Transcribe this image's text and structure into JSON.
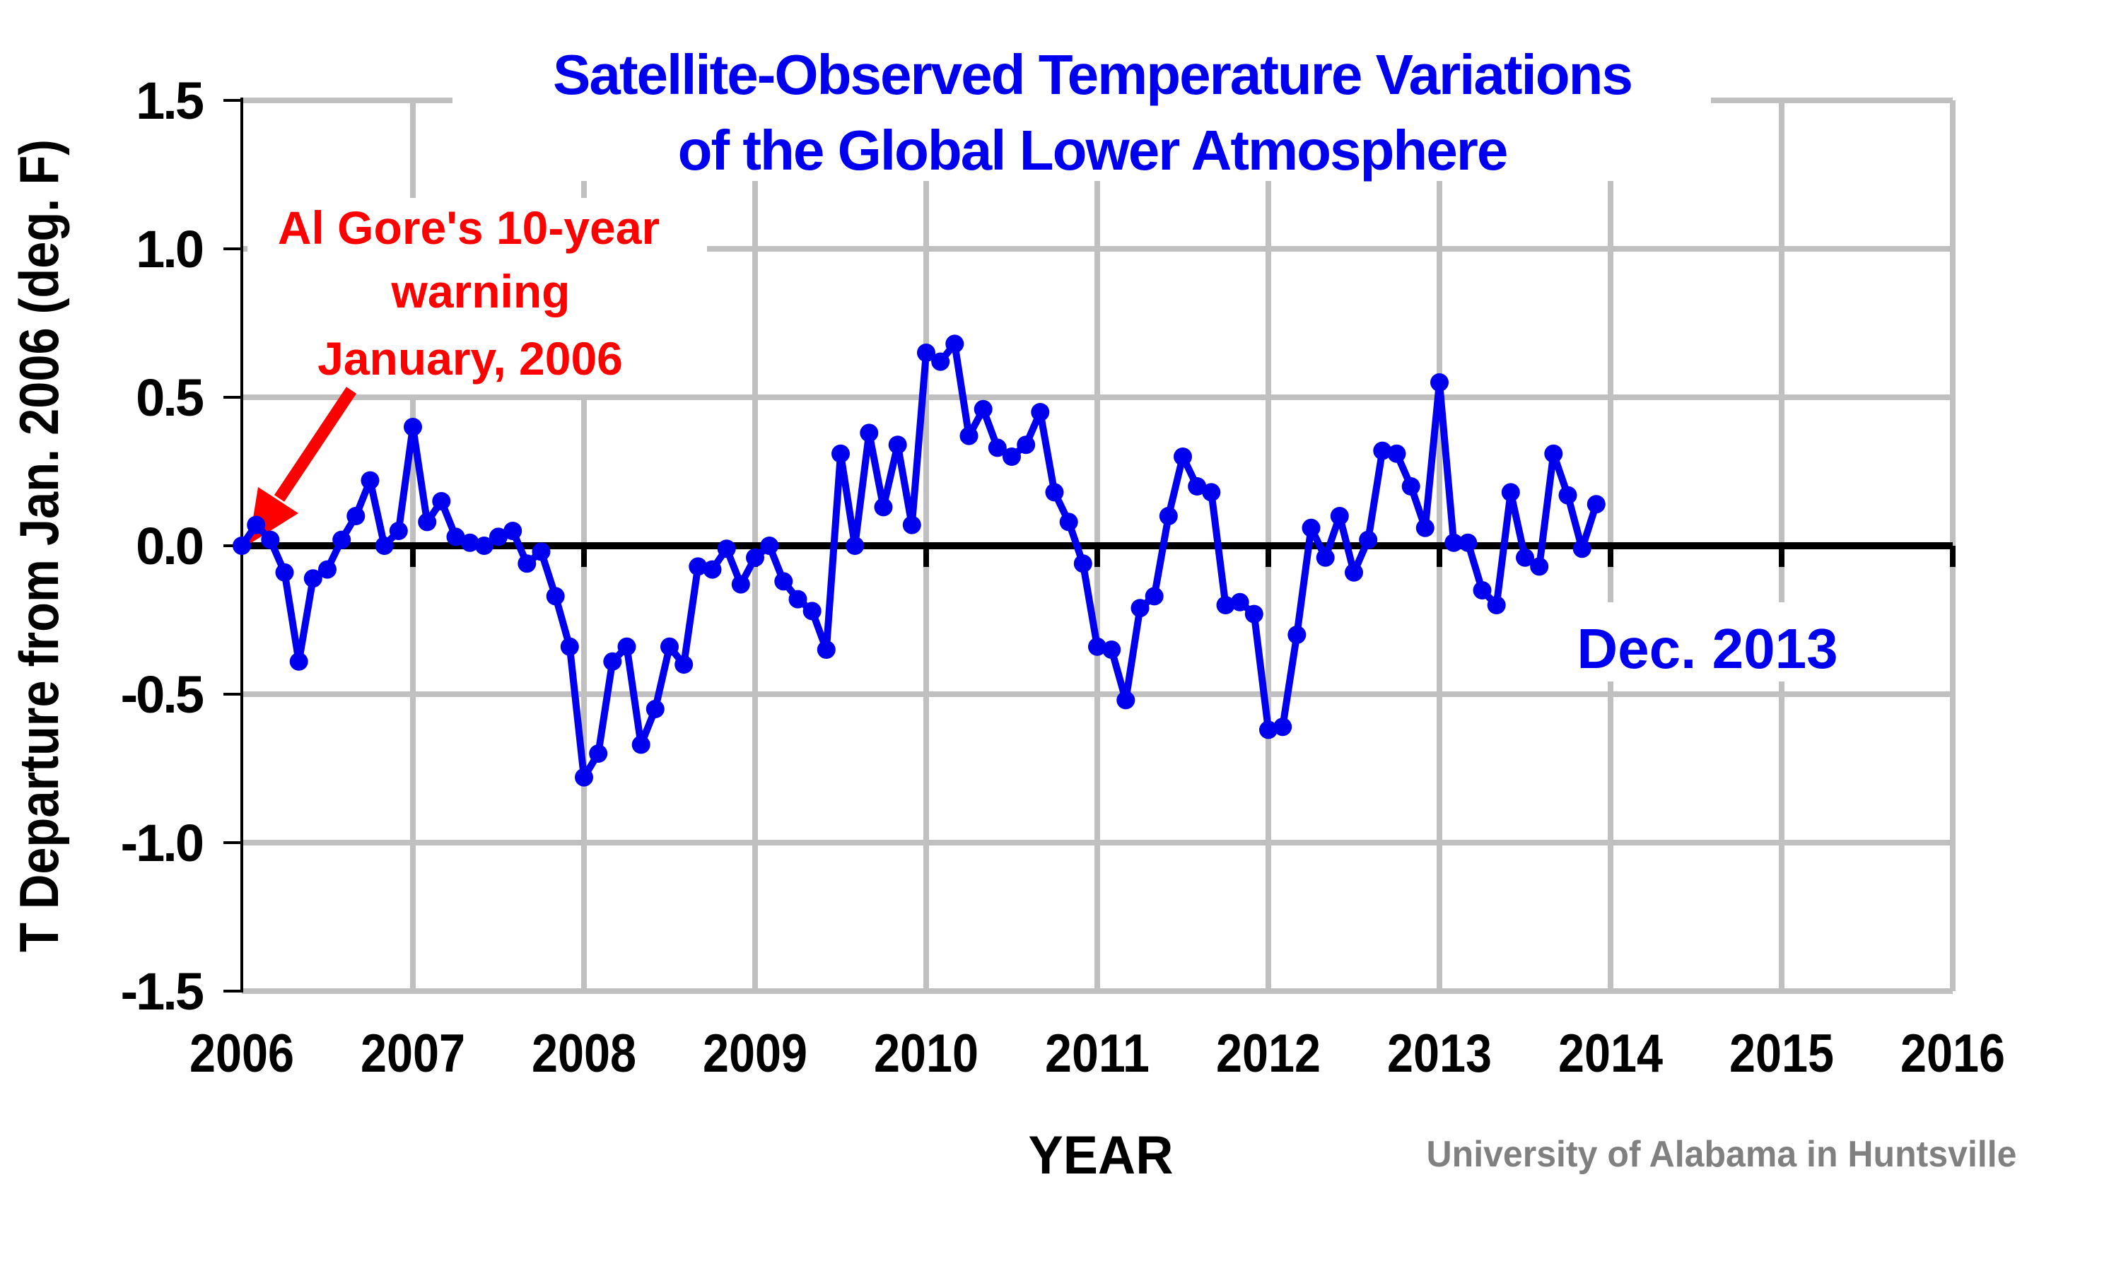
{
  "title": {
    "line1": "Satellite-Observed Temperature Variations",
    "line2": "of the Global Lower Atmosphere"
  },
  "annotation": {
    "line1": "Al Gore's 10-year",
    "line2": "warning",
    "line3": "January, 2006"
  },
  "labels": {
    "dec_2013": "Dec. 2013",
    "x_axis_title": "YEAR",
    "y_axis_title": "T Departure from Jan. 2006 (deg. F)",
    "credit": "University of Alabama in Huntsville"
  },
  "colors": {
    "series": "#0000EE",
    "title": "#0000EE",
    "annotation": "#FF0000",
    "gridline": "#C0C0C0",
    "axis": "#000000",
    "credit": "#808080",
    "background": "#FFFFFF"
  },
  "chart_data": {
    "type": "line",
    "title": "Satellite-Observed Temperature Variations of the Global Lower Atmosphere",
    "xlabel": "YEAR",
    "ylabel": "T Departure from Jan. 2006 (deg. F)",
    "xlim": [
      2006,
      2016
    ],
    "ylim": [
      -1.5,
      1.5
    ],
    "grid": true,
    "x_tick_values": [
      2006,
      2007,
      2008,
      2009,
      2010,
      2011,
      2012,
      2013,
      2014,
      2015,
      2016
    ],
    "x_tick_labels": [
      "2006",
      "2007",
      "2008",
      "2009",
      "2010",
      "2011",
      "2012",
      "2013",
      "2014",
      "2015",
      "2016"
    ],
    "y_tick_values": [
      1.5,
      1.0,
      0.5,
      0.0,
      -0.5,
      -1.0,
      -1.5
    ],
    "y_tick_labels": [
      "1.5",
      "1.0",
      "0.5",
      "0.0",
      "-0.5",
      "-1.0",
      "-1.5"
    ],
    "series": [
      {
        "name": "Monthly global lower-atmosphere temperature departure (deg. F)",
        "start": "2006-01",
        "end": "2013-12",
        "interval": "monthly",
        "values": [
          0.0,
          0.07,
          0.02,
          -0.09,
          -0.39,
          -0.11,
          -0.08,
          0.02,
          0.1,
          0.22,
          0.0,
          0.05,
          0.4,
          0.08,
          0.15,
          0.03,
          0.01,
          0.0,
          0.03,
          0.05,
          -0.06,
          -0.02,
          -0.17,
          -0.34,
          -0.78,
          -0.7,
          -0.39,
          -0.34,
          -0.67,
          -0.55,
          -0.34,
          -0.4,
          -0.07,
          -0.08,
          -0.01,
          -0.13,
          -0.04,
          0.0,
          -0.12,
          -0.18,
          -0.22,
          -0.35,
          0.31,
          0.0,
          0.38,
          0.13,
          0.34,
          0.07,
          0.65,
          0.62,
          0.68,
          0.37,
          0.46,
          0.33,
          0.3,
          0.34,
          0.45,
          0.18,
          0.08,
          -0.06,
          -0.34,
          -0.35,
          -0.52,
          -0.21,
          -0.17,
          0.1,
          0.3,
          0.2,
          0.18,
          -0.2,
          -0.19,
          -0.23,
          -0.62,
          -0.61,
          -0.3,
          0.06,
          -0.04,
          0.1,
          -0.09,
          0.02,
          0.32,
          0.31,
          0.2,
          0.06,
          0.55,
          0.01,
          0.01,
          -0.15,
          -0.2,
          0.18,
          -0.04,
          -0.07,
          0.31,
          0.17,
          -0.01,
          0.14
        ]
      }
    ],
    "annotations": [
      {
        "text": "Al Gore's 10-year warning January, 2006",
        "color": "#FF0000",
        "points_to": "2006-01 value 0.00"
      },
      {
        "text": "Dec. 2013",
        "color": "#0000EE",
        "near": "last data point"
      }
    ],
    "legend_position": "none"
  }
}
